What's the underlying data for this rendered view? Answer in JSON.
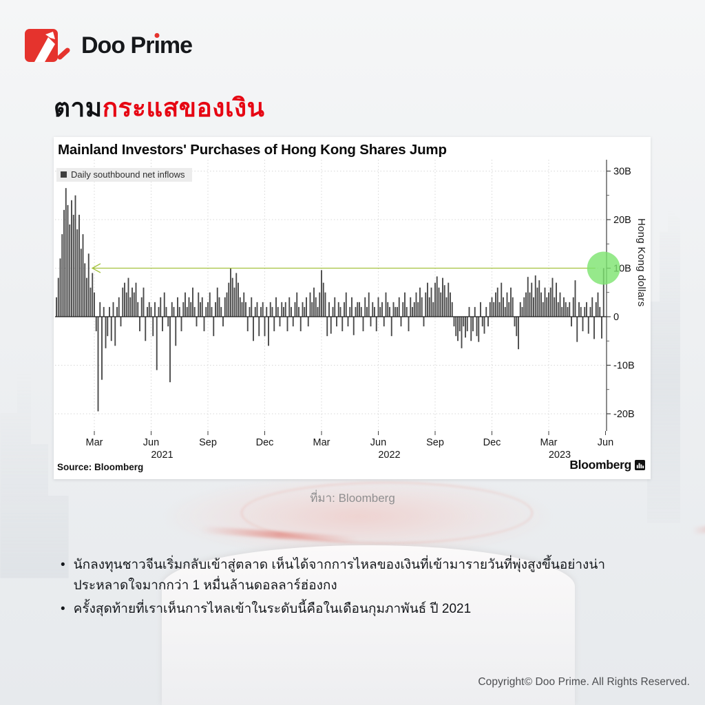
{
  "brand": {
    "logo_full": "Doo Prime",
    "logo_text_before": "Doo Pr",
    "logo_text_i": "ı",
    "logo_text_after": "me"
  },
  "page": {
    "title_black": "ตาม",
    "title_red": "กระแสของเงิน",
    "caption": "ที่มา: Bloomberg",
    "bullet_glyph": "•",
    "bullets": [
      "นักลงทุนชาวจีนเริ่มกลับเข้าสู่ตลาด เห็นได้จากการไหลของเงินที่เข้ามารายวันที่พุ่งสูงขึ้นอย่างน่าประหลาดใจมากกว่า 1 หมื่นล้านดอลลาร์ฮ่องกง",
      "ครั้งสุดท้ายที่เราเห็นการไหลเข้าในระดับนี้คือในเดือนกุมภาพันธ์ ปี 2021"
    ],
    "copyright": "Copyright© Doo Prime. All Rights Reserved."
  },
  "colors": {
    "accent_red": "#e60613",
    "logo_red": "#e5332d",
    "bar": "#4a4a4a",
    "grid": "#d7d7d7",
    "zero_line": "#1b1b1b",
    "axis": "#3f3f3f",
    "arrow_green": "#a3c13c",
    "circle_green": "#7ce36e"
  },
  "chart_data": {
    "type": "bar",
    "title": "Mainland Investors' Purchases of Hong Kong Shares Jump",
    "legend_label": "Daily southbound net inflows",
    "ylabel": "Hong Kong dollars",
    "unit": "billions of Hong Kong dollars (B)",
    "source": "Source: Bloomberg",
    "brand": "Bloomberg",
    "x_start": "2021-01",
    "x_end": "2023-06",
    "points_per_month": 10,
    "ylim": [
      -23,
      32
    ],
    "grid": true,
    "legend_position": "top-left",
    "yticks": [
      {
        "value": 30,
        "label": "30B"
      },
      {
        "value": 20,
        "label": "20B"
      },
      {
        "value": 10,
        "label": "10B"
      },
      {
        "value": 0,
        "label": "0"
      },
      {
        "value": -10,
        "label": "-10B"
      },
      {
        "value": -20,
        "label": "-20B"
      }
    ],
    "yticks_minor": [
      25,
      15,
      5,
      -5,
      -15
    ],
    "xticks": [
      {
        "month_index": 2,
        "label": "Mar"
      },
      {
        "month_index": 5,
        "label": "Jun"
      },
      {
        "month_index": 8,
        "label": "Sep"
      },
      {
        "month_index": 11,
        "label": "Dec"
      },
      {
        "month_index": 14,
        "label": "Mar"
      },
      {
        "month_index": 17,
        "label": "Jun"
      },
      {
        "month_index": 20,
        "label": "Sep"
      },
      {
        "month_index": 23,
        "label": "Dec"
      },
      {
        "month_index": 26,
        "label": "Mar"
      },
      {
        "month_index": 29,
        "label": "Jun"
      }
    ],
    "year_ticks": [
      {
        "month_index": 5,
        "label": "2021"
      },
      {
        "month_index": 17,
        "label": "2022"
      },
      {
        "month_index": 26,
        "label": "2023"
      }
    ],
    "annotation": {
      "arrow_level_billions": 10,
      "arrow_direction": "left",
      "circle_highlight": "latest daily inflow ≈ 10B, matching Feb 2021 levels"
    },
    "values": [
      4,
      8,
      12,
      17,
      22,
      26.5,
      23,
      19,
      24,
      21,
      25,
      18,
      21,
      14,
      17,
      11,
      8,
      13,
      6,
      9,
      5,
      -3,
      -19.5,
      3,
      -13,
      2,
      -6.5,
      -4,
      2,
      -5,
      3,
      -6,
      2,
      4,
      -2,
      6,
      7,
      5,
      8,
      4,
      6,
      5,
      7,
      3,
      -3,
      4,
      6,
      -5,
      2,
      3,
      2,
      -4,
      3,
      -11,
      2,
      4,
      -3,
      5,
      2,
      -2,
      -13.5,
      3,
      2,
      -6,
      4,
      2,
      -3,
      3,
      5,
      2,
      4,
      3,
      6,
      2,
      -2,
      5,
      3,
      4,
      -3,
      2,
      3,
      5,
      2,
      -4,
      3,
      6,
      4,
      2,
      -2,
      4,
      5,
      7,
      10,
      8,
      6,
      9,
      7,
      4,
      3,
      5,
      3,
      -3,
      2,
      4,
      -5,
      2,
      3,
      -4,
      2,
      3,
      -4,
      2,
      -6,
      3,
      2,
      -3,
      4,
      2,
      -2,
      3,
      2,
      3,
      -3,
      4,
      2,
      -2,
      3,
      5,
      2,
      -3,
      3,
      2,
      4,
      -2,
      5,
      3,
      6,
      4,
      2,
      5,
      9.6,
      7,
      5,
      -4,
      3,
      -3.5,
      2,
      4,
      -2,
      3,
      2,
      -3,
      3,
      5,
      -2,
      2,
      4,
      -3.8,
      2,
      3,
      3,
      2,
      -3,
      4,
      2,
      5,
      -2,
      3,
      2,
      -3,
      4,
      2,
      3,
      -2,
      5,
      3,
      2,
      -4,
      3,
      2,
      2,
      4,
      -2,
      3,
      5,
      2,
      -3,
      4,
      2,
      3,
      5,
      3,
      6,
      4,
      -2,
      5,
      7,
      4,
      6,
      3,
      7,
      8.3,
      6,
      5,
      8,
      6.5,
      4,
      7,
      5,
      3,
      -2,
      -4,
      -5,
      -3,
      -6.5,
      -2,
      -4.3,
      -3,
      2,
      -5,
      -3,
      2,
      -4,
      -5.2,
      3,
      -2,
      -3.5,
      2,
      -2,
      3,
      4,
      3,
      5,
      6,
      3,
      7,
      4,
      2,
      5,
      3,
      6,
      4,
      -2,
      -4,
      -6.7,
      3,
      2,
      4,
      5,
      8.2,
      5,
      7,
      4,
      8.5,
      6,
      7.5,
      5,
      3,
      6,
      4,
      5,
      6,
      8,
      4,
      7,
      3,
      5,
      2,
      4,
      3,
      2,
      3,
      -2,
      4,
      7.5,
      -5.2,
      3,
      2,
      -3,
      2,
      3,
      -3.5,
      2,
      4,
      -4.6,
      3,
      5,
      2,
      -4.5,
      10
    ]
  }
}
